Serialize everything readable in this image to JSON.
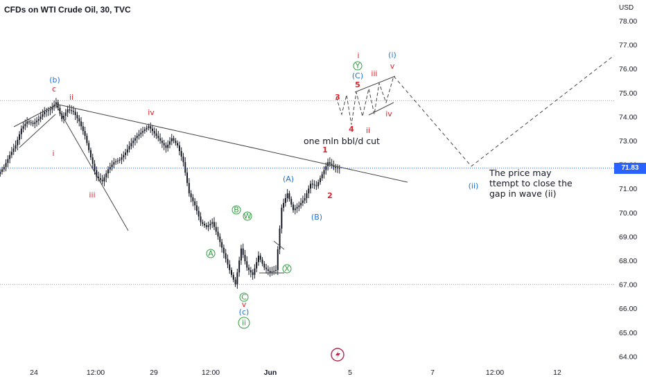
{
  "header": {
    "title": "CFDs on WTI Crude Oil, 30, TVC",
    "currency": "USD"
  },
  "current_price": {
    "label": "71.83",
    "value": 71.83,
    "color": "#2962ff"
  },
  "colors": {
    "candles": "#131722",
    "red_labels": "#e0202a",
    "blue_labels": "#1e6fd9",
    "green_labels": "#2e9e3e",
    "lines": "#555555",
    "dotted": "#9aa0b0"
  },
  "chart_data": {
    "type": "candlestick",
    "title": "CFDs on WTI Crude Oil, 30, TVC",
    "ylabel": "USD",
    "ylim": [
      63.6,
      79.4
    ],
    "y_ticks": [
      "64.00",
      "65.00",
      "66.00",
      "67.00",
      "68.00",
      "69.00",
      "70.00",
      "71.00",
      "72.00",
      "73.00",
      "74.00",
      "75.00",
      "76.00",
      "77.00",
      "78.00"
    ],
    "x_ticks": [
      "24",
      "12:00",
      "29",
      "12:00",
      "Jun",
      "5",
      "7",
      "12:00",
      "12"
    ],
    "series": [
      {
        "values": [
          71.9,
          72.4,
          72.8,
          73.5,
          73.8,
          73.7,
          73.9,
          74.2,
          74.3,
          74.6,
          73.9,
          74.3,
          74.2,
          73.8,
          73.2,
          72.3,
          71.5,
          71.3,
          71.8,
          72.1,
          72.2,
          72.5,
          72.9,
          73.2,
          73.4,
          73.6,
          73.3,
          73.0,
          72.7,
          73.1,
          72.8,
          72.1,
          70.8,
          70.3,
          69.6,
          69.4,
          69.6,
          69.0,
          68.3,
          67.6,
          67.0,
          68.5,
          67.7,
          67.4,
          68.2,
          67.7,
          67.5,
          67.6,
          70.2,
          70.8,
          70.1,
          70.3,
          70.6,
          71.2,
          71.1,
          71.6,
          72.1,
          71.9,
          71.83
        ]
      }
    ],
    "annotations": [
      {
        "text": "one mln bbl/d cut"
      },
      {
        "text": "The price may attempt to close the gap in wave (ii)"
      }
    ],
    "wave_labels": {
      "red": [
        "c",
        "ii",
        "i",
        "iii",
        "iv",
        "v",
        "1",
        "2",
        "3",
        "4",
        "5",
        "ii",
        "iii",
        "iv",
        "i",
        "v"
      ],
      "blue": [
        "(b)",
        "(c)",
        "(A)",
        "(B)",
        "(C)",
        "(i)",
        "(ii)"
      ],
      "green": [
        "A",
        "B",
        "W",
        "X",
        "C",
        "ii",
        "Y"
      ]
    }
  }
}
